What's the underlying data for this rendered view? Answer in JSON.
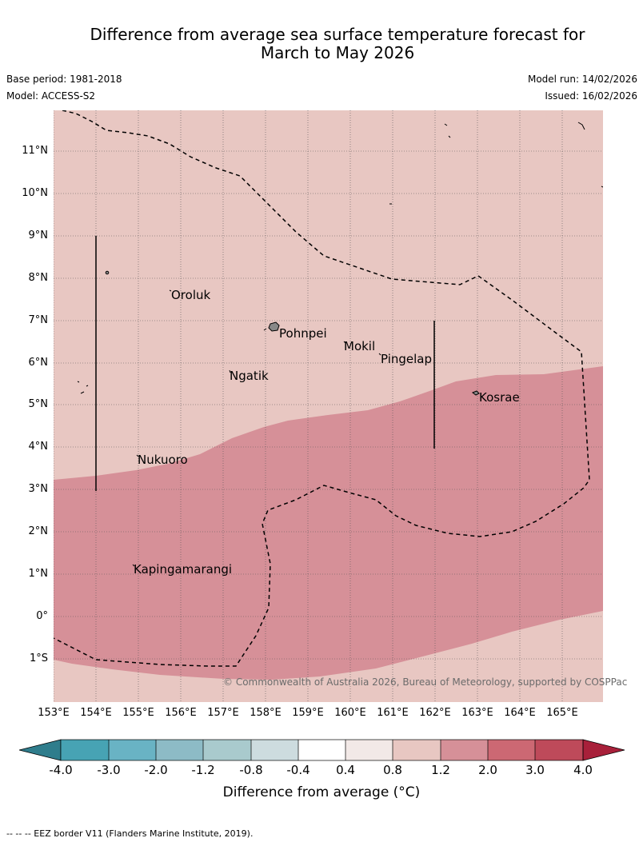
{
  "title_line1": "Difference from average sea surface temperature forecast for",
  "title_line2": "March to May 2026",
  "base_period": "Base period: 1981-2018",
  "model": "Model: ACCESS-S2",
  "model_run": "Model run: 14/02/2026",
  "issued": "Issued: 16/02/2026",
  "y_labels": [
    "11°N",
    "10°N",
    "9°N",
    "8°N",
    "7°N",
    "6°N",
    "5°N",
    "4°N",
    "3°N",
    "2°N",
    "1°N",
    "0°",
    "1°S"
  ],
  "x_labels": [
    "153°E",
    "154°E",
    "155°E",
    "156°E",
    "157°E",
    "158°E",
    "159°E",
    "160°E",
    "161°E",
    "162°E",
    "163°E",
    "164°E",
    "165°E"
  ],
  "places": {
    "oroluk": "Oroluk",
    "pohnpei": "Pohnpei",
    "mokil": "Mokil",
    "pingelap": "Pingelap",
    "ngatik": "Ngatik",
    "kosrae": "Kosrae",
    "nukuoro": "Nukuoro",
    "kapingamarangi": "Kapingamarangi"
  },
  "copyright": "© Commonwealth of Australia 2026, Bureau of Meteorology, supported by COSPPac",
  "colorbar": {
    "ticks": [
      "-4.0",
      "-3.0",
      "-2.0",
      "-1.2",
      "-0.8",
      "-0.4",
      "0.4",
      "0.8",
      "1.2",
      "2.0",
      "3.0",
      "4.0"
    ],
    "colors": [
      "#2f7d8c",
      "#47a3b4",
      "#69b3c4",
      "#8dbbc6",
      "#a9cacd",
      "#cddcdf",
      "#ffffff",
      "#f2e9e7",
      "#e8c7c2",
      "#d69098",
      "#cc6873",
      "#be4a5a",
      "#a8203a"
    ],
    "title": "Difference from average (°C)"
  },
  "footer": "-- --  -- EEZ border V11 (Flanders Marine Institute, 2019).",
  "colors": {
    "light_anomaly": "#e8c7c2",
    "strong_anomaly": "#d69098"
  }
}
